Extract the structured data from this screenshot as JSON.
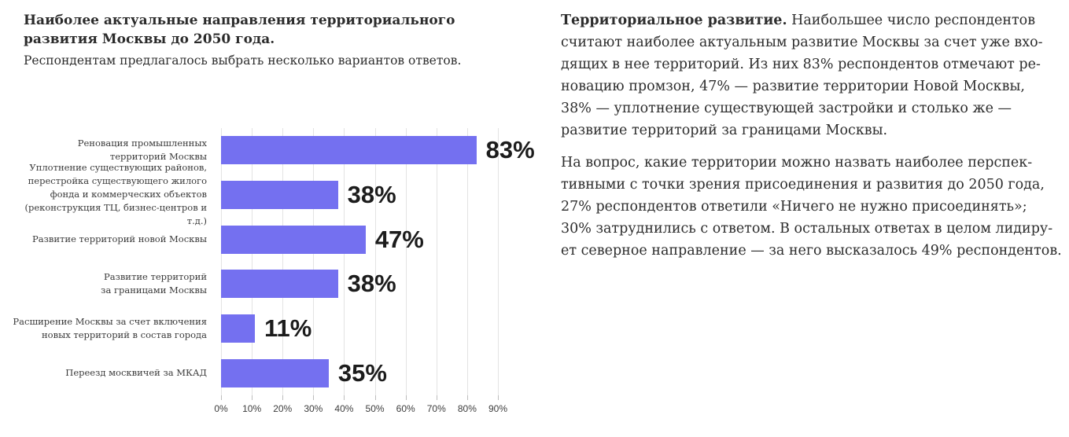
{
  "header": {
    "title": "Наиболее актуальные направления территориального\nразвития Москвы до 2050 года.",
    "subtitle": "Респондентам предлагалось выбрать несколько вариантов ответов."
  },
  "chart_data": {
    "type": "bar",
    "orientation": "horizontal",
    "title": "Наиболее актуальные направления территориального развития Москвы до 2050 года.",
    "subtitle": "Респондентам предлагалось выбрать несколько вариантов ответов.",
    "categories": [
      "Реновация промышленных\nтерриторий Москвы",
      "Уплотнение существующих районов,\nперестройка существующего жилого\nфонда и коммерческих объектов\n(реконструкция ТЦ, бизнес-центров и т.д.)",
      "Развитие территорий новой Москвы",
      "Развитие территорий\nза границами Москвы",
      "Расширение Москвы за счет включения\nновых территорий в состав города",
      "Переезд москвичей за МКАД"
    ],
    "values": [
      83,
      38,
      47,
      38,
      11,
      35
    ],
    "value_labels": [
      "83%",
      "38%",
      "47%",
      "38%",
      "11%",
      "35%"
    ],
    "x_ticks": [
      "0%",
      "10%",
      "20%",
      "30%",
      "40%",
      "50%",
      "60%",
      "70%",
      "80%",
      "90%"
    ],
    "x_tick_values": [
      0,
      10,
      20,
      30,
      40,
      50,
      60,
      70,
      80,
      90
    ],
    "xlim": [
      0,
      90
    ],
    "xlabel": "",
    "ylabel": "",
    "grid": true,
    "legend": false,
    "bar_color": "#7470f0"
  },
  "article": {
    "lead_bold": "Территориальное развитие.",
    "paragraph1": " Наибольшее число респондентов\nсчитают наиболее актуальным развитие Москвы за счет уже вхо-\nдящих в нее территорий. Из них 83% респондентов отмечают ре-\nновацию промзон, 47% — развитие территории Новой Москвы,\n38% — уплотнение существующей застройки и столько же —\nразвитие территорий за границами Москвы.",
    "paragraph2": "На вопрос, какие территории можно назвать наиболее перспек-\nтивными с точки зрения присоединения и развития до 2050 года,\n27% респондентов ответили «Ничего не нужно присоединять»;\n30% затруднились с ответом. В остальных ответах в целом лидиру-\nет северное направление — за него высказалось 49% респондентов."
  }
}
